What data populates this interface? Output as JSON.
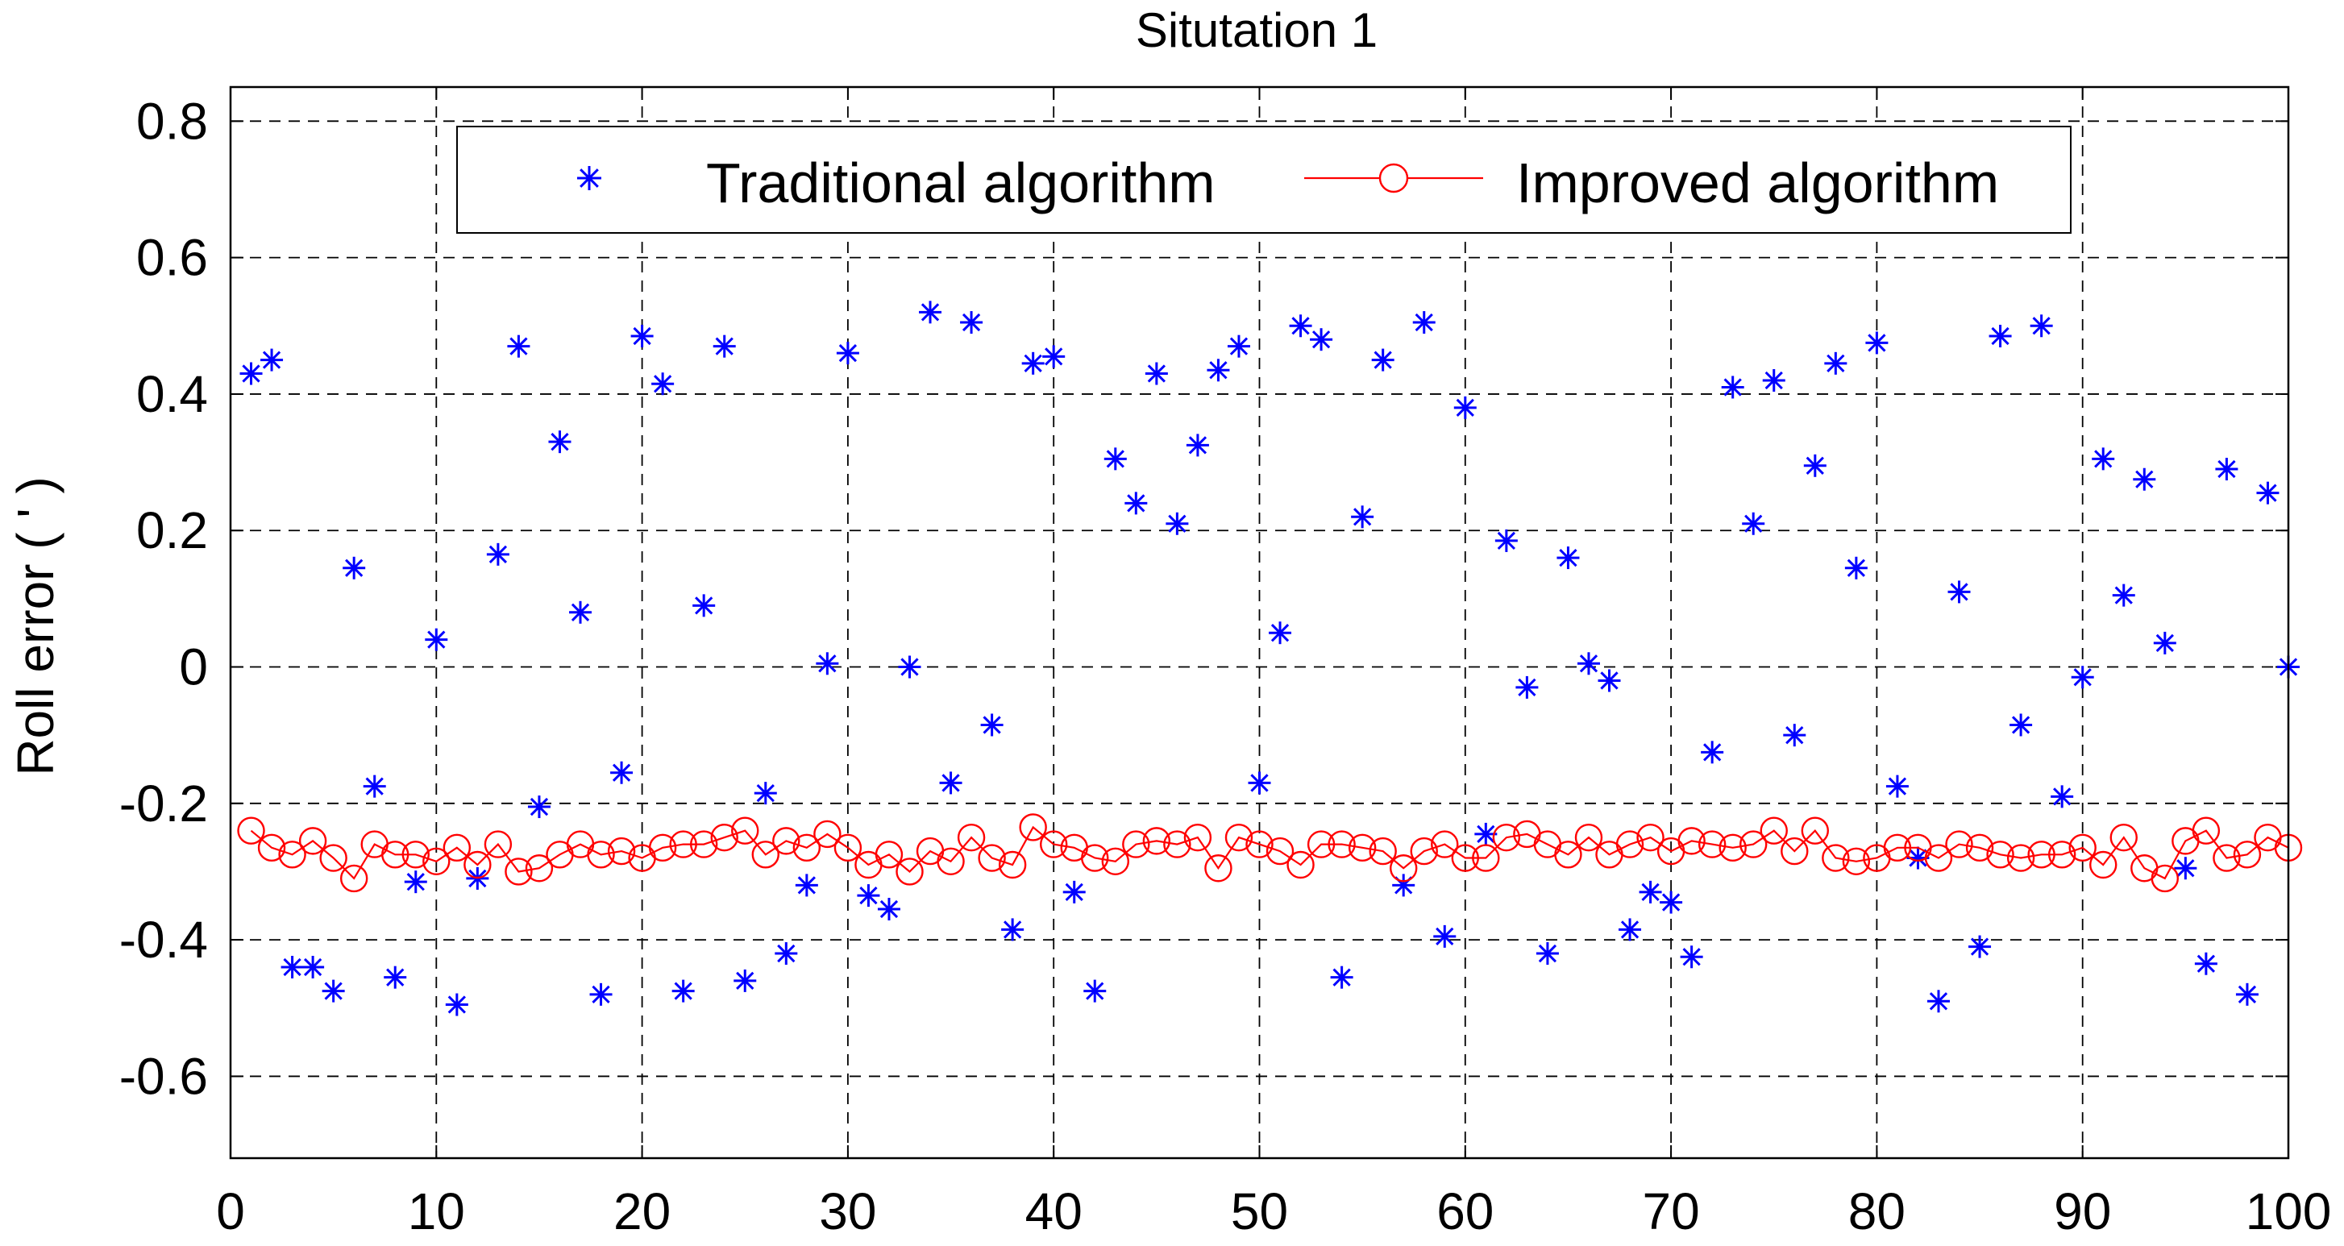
{
  "chart_data": {
    "type": "scatter",
    "title": "Situtation 1",
    "xlabel": "",
    "ylabel": "Roll error ( ' )",
    "xlim": [
      0,
      100
    ],
    "ylim": [
      -0.72,
      0.85
    ],
    "xticks": [
      0,
      10,
      20,
      30,
      40,
      50,
      60,
      70,
      80,
      90,
      100
    ],
    "yticks": [
      0.8,
      0.6,
      0.4,
      0.2,
      0,
      -0.2,
      -0.4,
      -0.6
    ],
    "xtick_labels": [
      "0",
      "10",
      "20",
      "30",
      "40",
      "50",
      "60",
      "70",
      "80",
      "90",
      "100"
    ],
    "ytick_labels": [
      "0.8",
      "0.6",
      "0.4",
      "0.2",
      "0",
      "-0.2",
      "-0.4",
      "-0.6"
    ],
    "grid": true,
    "legend_position": "top",
    "series": [
      {
        "name": "Traditional algorithm",
        "style": "asterisk-markers",
        "color": "#0000ff",
        "x": [
          1,
          2,
          3,
          4,
          5,
          6,
          7,
          8,
          9,
          10,
          11,
          12,
          13,
          14,
          15,
          16,
          17,
          18,
          19,
          20,
          21,
          22,
          23,
          24,
          25,
          26,
          27,
          28,
          29,
          30,
          31,
          32,
          33,
          34,
          35,
          36,
          37,
          38,
          39,
          40,
          41,
          42,
          43,
          44,
          45,
          46,
          47,
          48,
          49,
          50,
          51,
          52,
          53,
          54,
          55,
          56,
          57,
          58,
          59,
          60,
          61,
          62,
          63,
          64,
          65,
          66,
          67,
          68,
          69,
          70,
          71,
          72,
          73,
          74,
          75,
          76,
          77,
          78,
          79,
          80,
          81,
          82,
          83,
          84,
          85,
          86,
          87,
          88,
          89,
          90,
          91,
          92,
          93,
          94,
          95,
          96,
          97,
          98,
          99,
          100
        ],
        "values": [
          0.43,
          0.45,
          -0.44,
          -0.44,
          -0.475,
          0.145,
          -0.175,
          -0.455,
          -0.315,
          0.04,
          -0.495,
          -0.31,
          0.165,
          0.47,
          -0.205,
          0.33,
          0.08,
          -0.48,
          -0.155,
          0.485,
          0.415,
          -0.475,
          0.09,
          0.47,
          -0.46,
          -0.185,
          -0.42,
          -0.32,
          0.005,
          0.46,
          -0.335,
          -0.355,
          -0.0,
          0.52,
          -0.17,
          0.505,
          -0.085,
          -0.385,
          0.445,
          0.455,
          -0.33,
          -0.475,
          0.305,
          0.24,
          0.43,
          0.21,
          0.325,
          0.435,
          0.47,
          -0.17,
          0.05,
          0.5,
          0.48,
          -0.455,
          0.22,
          0.45,
          -0.32,
          0.505,
          -0.395,
          0.38,
          -0.245,
          0.185,
          -0.03,
          -0.42,
          0.16,
          0.005,
          -0.02,
          -0.385,
          -0.33,
          -0.345,
          -0.425,
          -0.125,
          0.41,
          0.21,
          0.42,
          -0.1,
          0.295,
          0.445,
          0.145,
          0.475,
          -0.175,
          -0.28,
          -0.49,
          0.11,
          -0.41,
          0.485,
          -0.085,
          0.5,
          -0.19,
          -0.015,
          0.305,
          0.105,
          0.275,
          0.035,
          -0.295,
          -0.435,
          0.29,
          -0.48,
          0.255,
          0.0
        ]
      },
      {
        "name": "Improved algorithm",
        "style": "line-with-circles",
        "color": "#ff0000",
        "x": [
          1,
          2,
          3,
          4,
          5,
          6,
          7,
          8,
          9,
          10,
          11,
          12,
          13,
          14,
          15,
          16,
          17,
          18,
          19,
          20,
          21,
          22,
          23,
          24,
          25,
          26,
          27,
          28,
          29,
          30,
          31,
          32,
          33,
          34,
          35,
          36,
          37,
          38,
          39,
          40,
          41,
          42,
          43,
          44,
          45,
          46,
          47,
          48,
          49,
          50,
          51,
          52,
          53,
          54,
          55,
          56,
          57,
          58,
          59,
          60,
          61,
          62,
          63,
          64,
          65,
          66,
          67,
          68,
          69,
          70,
          71,
          72,
          73,
          74,
          75,
          76,
          77,
          78,
          79,
          80,
          81,
          82,
          83,
          84,
          85,
          86,
          87,
          88,
          89,
          90,
          91,
          92,
          93,
          94,
          95,
          96,
          97,
          98,
          99,
          100
        ],
        "values": [
          -0.24,
          -0.265,
          -0.275,
          -0.255,
          -0.28,
          -0.31,
          -0.26,
          -0.275,
          -0.275,
          -0.285,
          -0.265,
          -0.29,
          -0.26,
          -0.3,
          -0.295,
          -0.275,
          -0.26,
          -0.275,
          -0.27,
          -0.28,
          -0.265,
          -0.26,
          -0.26,
          -0.25,
          -0.24,
          -0.275,
          -0.255,
          -0.265,
          -0.245,
          -0.265,
          -0.29,
          -0.275,
          -0.3,
          -0.27,
          -0.285,
          -0.25,
          -0.28,
          -0.29,
          -0.235,
          -0.26,
          -0.265,
          -0.28,
          -0.285,
          -0.26,
          -0.255,
          -0.26,
          -0.25,
          -0.295,
          -0.25,
          -0.26,
          -0.27,
          -0.29,
          -0.26,
          -0.26,
          -0.265,
          -0.27,
          -0.295,
          -0.27,
          -0.26,
          -0.28,
          -0.28,
          -0.25,
          -0.245,
          -0.26,
          -0.275,
          -0.25,
          -0.275,
          -0.26,
          -0.25,
          -0.27,
          -0.255,
          -0.26,
          -0.265,
          -0.26,
          -0.24,
          -0.27,
          -0.24,
          -0.28,
          -0.285,
          -0.28,
          -0.265,
          -0.265,
          -0.28,
          -0.26,
          -0.265,
          -0.275,
          -0.28,
          -0.275,
          -0.275,
          -0.265,
          -0.29,
          -0.25,
          -0.295,
          -0.31,
          -0.255,
          -0.24,
          -0.28,
          -0.275,
          -0.25,
          -0.265
        ]
      }
    ]
  }
}
